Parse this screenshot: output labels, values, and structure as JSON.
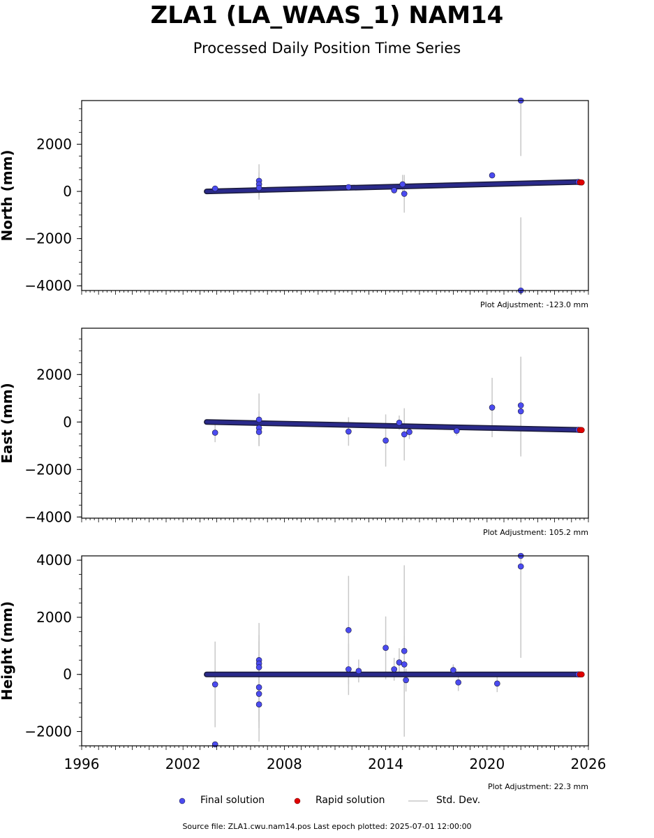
{
  "title": "ZLA1 (LA_WAAS_1) NAM14",
  "subtitle": "Processed Daily Position Time Series",
  "legend": {
    "final": "Final solution",
    "rapid": "Rapid solution",
    "stddev": "Std. Dev."
  },
  "source_note": "Source file: ZLA1.cwu.nam14.pos  Last epoch plotted: 2025-07-01 12:00:00",
  "colors": {
    "final": "#4b4bf0",
    "rapid": "#e00000",
    "errorbar": "#c8c8c8",
    "edge": "#1a1a3a"
  },
  "chart_data": [
    {
      "type": "scatter",
      "ylabel": "North (mm)",
      "xlim": [
        1996,
        2026
      ],
      "ylim": [
        -4200,
        3850
      ],
      "yticks": [
        -4000,
        -2000,
        0,
        2000
      ],
      "ytick_labels": [
        "−4000",
        "−2000",
        "0",
        "2000"
      ],
      "adjustment": "Plot Adjustment: -123.0 mm",
      "trend": {
        "start": [
          2003.4,
          0
        ],
        "end": [
          2025.4,
          400
        ]
      },
      "outliers": [
        {
          "x": 2003.9,
          "y": 120,
          "err": 0
        },
        {
          "x": 2006.5,
          "y": 450,
          "err": 700
        },
        {
          "x": 2006.5,
          "y": 300,
          "err": 500
        },
        {
          "x": 2006.5,
          "y": 150,
          "err": 500
        },
        {
          "x": 2011.8,
          "y": 180,
          "err": 0
        },
        {
          "x": 2014.5,
          "y": 50,
          "err": 0
        },
        {
          "x": 2015.0,
          "y": 300,
          "err": 400
        },
        {
          "x": 2015.1,
          "y": -100,
          "err": 800
        },
        {
          "x": 2020.3,
          "y": 680,
          "err": 0
        },
        {
          "x": 2022.0,
          "y": 3850,
          "err": 2350
        },
        {
          "x": 2022.0,
          "y": -4200,
          "err": 3100
        }
      ],
      "rapid": [
        {
          "x": 2025.5,
          "y": 385
        },
        {
          "x": 2025.6,
          "y": 380
        }
      ]
    },
    {
      "type": "scatter",
      "ylabel": "East (mm)",
      "xlim": [
        1996,
        2026
      ],
      "ylim": [
        -4050,
        3950
      ],
      "yticks": [
        -4000,
        -2000,
        0,
        2000
      ],
      "ytick_labels": [
        "−4000",
        "−2000",
        "0",
        "2000"
      ],
      "adjustment": "Plot Adjustment: 105.2 mm",
      "trend": {
        "start": [
          2003.4,
          0
        ],
        "end": [
          2025.4,
          -330
        ]
      },
      "outliers": [
        {
          "x": 2003.9,
          "y": -450,
          "err": 400
        },
        {
          "x": 2006.5,
          "y": 100,
          "err": 1100
        },
        {
          "x": 2006.5,
          "y": -250,
          "err": 700
        },
        {
          "x": 2006.5,
          "y": -420,
          "err": 600
        },
        {
          "x": 2011.8,
          "y": -400,
          "err": 600
        },
        {
          "x": 2014.0,
          "y": -780,
          "err": 1100
        },
        {
          "x": 2014.8,
          "y": -30,
          "err": 300
        },
        {
          "x": 2015.1,
          "y": -520,
          "err": 1100
        },
        {
          "x": 2015.4,
          "y": -420,
          "err": 300
        },
        {
          "x": 2018.2,
          "y": -370,
          "err": 200
        },
        {
          "x": 2020.3,
          "y": 610,
          "err": 1250
        },
        {
          "x": 2022.0,
          "y": 700,
          "err": 2050
        },
        {
          "x": 2022.0,
          "y": 450,
          "err": 1900
        }
      ],
      "rapid": [
        {
          "x": 2025.5,
          "y": -335
        },
        {
          "x": 2025.6,
          "y": -340
        }
      ]
    },
    {
      "type": "scatter",
      "ylabel": "Height (mm)",
      "xlim": [
        1996,
        2026
      ],
      "ylim": [
        -2500,
        4150
      ],
      "yticks": [
        -2000,
        0,
        2000,
        4000
      ],
      "ytick_labels": [
        "−2000",
        "0",
        "2000",
        "4000"
      ],
      "xticks": [
        1996,
        2002,
        2008,
        2014,
        2020,
        2026
      ],
      "adjustment": "Plot Adjustment: 22.3 mm",
      "trend": {
        "start": [
          2003.4,
          0
        ],
        "end": [
          2025.4,
          0
        ]
      },
      "outliers": [
        {
          "x": 2003.9,
          "y": -350,
          "err": 1500
        },
        {
          "x": 2003.9,
          "y": -2450,
          "err": 0
        },
        {
          "x": 2006.5,
          "y": 500,
          "err": 1300
        },
        {
          "x": 2006.5,
          "y": 380,
          "err": 1000
        },
        {
          "x": 2006.5,
          "y": 250,
          "err": 900
        },
        {
          "x": 2006.5,
          "y": -450,
          "err": 1200
        },
        {
          "x": 2006.5,
          "y": -680,
          "err": 1200
        },
        {
          "x": 2006.5,
          "y": -1050,
          "err": 1300
        },
        {
          "x": 2011.8,
          "y": 1550,
          "err": 1900
        },
        {
          "x": 2011.8,
          "y": 180,
          "err": 900
        },
        {
          "x": 2012.4,
          "y": 120,
          "err": 400
        },
        {
          "x": 2014.0,
          "y": 930,
          "err": 1100
        },
        {
          "x": 2014.5,
          "y": 180,
          "err": 400
        },
        {
          "x": 2014.8,
          "y": 420,
          "err": 500
        },
        {
          "x": 2015.1,
          "y": 820,
          "err": 3000
        },
        {
          "x": 2015.1,
          "y": 350,
          "err": 1000
        },
        {
          "x": 2015.2,
          "y": -200,
          "err": 400
        },
        {
          "x": 2018.0,
          "y": 150,
          "err": 200
        },
        {
          "x": 2018.3,
          "y": -280,
          "err": 300
        },
        {
          "x": 2020.6,
          "y": -320,
          "err": 300
        },
        {
          "x": 2022.0,
          "y": 4150,
          "err": 0
        },
        {
          "x": 2022.0,
          "y": 3780,
          "err": 3200
        }
      ],
      "rapid": [
        {
          "x": 2025.5,
          "y": 0
        },
        {
          "x": 2025.6,
          "y": 0
        }
      ]
    }
  ]
}
